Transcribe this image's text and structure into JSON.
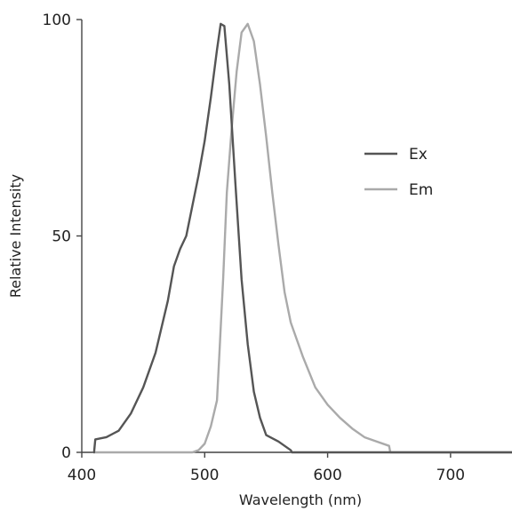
{
  "chart_data": {
    "type": "line",
    "title": "",
    "xlabel": "Wavelength (nm)",
    "ylabel": "Relative Intensity",
    "xlim": [
      400,
      750
    ],
    "ylim": [
      0,
      100
    ],
    "x_ticks": [
      400,
      500,
      600,
      700
    ],
    "y_ticks": [
      0,
      50,
      100
    ],
    "x_tick_labels": [
      "400",
      "500",
      "600",
      "700"
    ],
    "y_tick_labels": [
      "0",
      "50",
      "100"
    ],
    "legend": {
      "position": "right",
      "entries": [
        "Ex",
        "Em"
      ]
    },
    "grid": false,
    "series": [
      {
        "name": "Ex",
        "color": "#555555",
        "points": [
          [
            410,
            0
          ],
          [
            411,
            3
          ],
          [
            420,
            3.5
          ],
          [
            430,
            5
          ],
          [
            440,
            9
          ],
          [
            450,
            15
          ],
          [
            460,
            23
          ],
          [
            470,
            35
          ],
          [
            475,
            43
          ],
          [
            480,
            47
          ],
          [
            485,
            50
          ],
          [
            490,
            57
          ],
          [
            495,
            64
          ],
          [
            500,
            72
          ],
          [
            505,
            82
          ],
          [
            510,
            93
          ],
          [
            513,
            99
          ],
          [
            516,
            98.5
          ],
          [
            520,
            85
          ],
          [
            525,
            62
          ],
          [
            530,
            40
          ],
          [
            535,
            25
          ],
          [
            540,
            14
          ],
          [
            545,
            8
          ],
          [
            550,
            4
          ],
          [
            560,
            2.5
          ],
          [
            565,
            1.5
          ],
          [
            570,
            0.5
          ],
          [
            571,
            0
          ],
          [
            750,
            0
          ]
        ]
      },
      {
        "name": "Em",
        "color": "#aaaaaa",
        "points": [
          [
            410,
            0
          ],
          [
            490,
            0
          ],
          [
            495,
            0.5
          ],
          [
            500,
            2
          ],
          [
            505,
            6
          ],
          [
            510,
            12
          ],
          [
            512,
            23
          ],
          [
            515,
            40
          ],
          [
            518,
            60
          ],
          [
            522,
            75
          ],
          [
            526,
            88
          ],
          [
            530,
            97
          ],
          [
            535,
            99
          ],
          [
            540,
            95
          ],
          [
            545,
            85
          ],
          [
            550,
            73
          ],
          [
            555,
            60
          ],
          [
            560,
            48
          ],
          [
            565,
            37
          ],
          [
            570,
            30
          ],
          [
            575,
            26
          ],
          [
            580,
            22
          ],
          [
            590,
            15
          ],
          [
            600,
            11
          ],
          [
            610,
            8
          ],
          [
            620,
            5.5
          ],
          [
            630,
            3.5
          ],
          [
            640,
            2.5
          ],
          [
            650,
            1.5
          ],
          [
            651,
            0
          ],
          [
            750,
            0
          ]
        ]
      }
    ]
  }
}
